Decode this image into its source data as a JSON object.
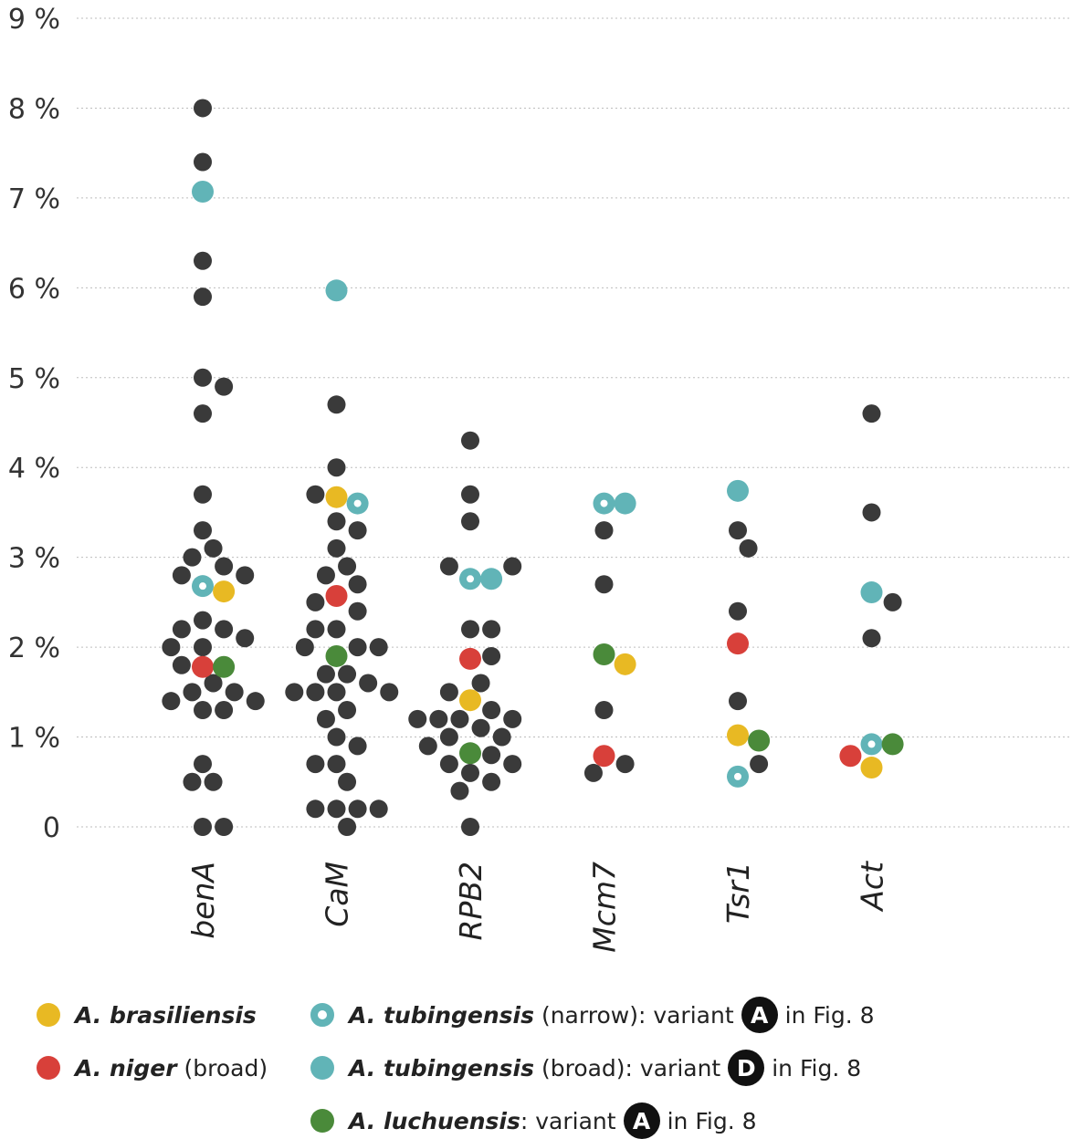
{
  "chart_data": {
    "type": "scatter",
    "title": "",
    "xlabel": "",
    "ylabel": "",
    "ylim": [
      0,
      9
    ],
    "y_tick_labels": [
      "0",
      "1 %",
      "2 %",
      "3 %",
      "4 %",
      "5 %",
      "6 %",
      "7 %",
      "8 %",
      "9 %"
    ],
    "categories": [
      "benA",
      "CaM",
      "RPB2",
      "Mcm7",
      "Tsr1",
      "Act"
    ],
    "grid": "horizontal dotted",
    "colors": {
      "other": "#3a3a3a",
      "A. brasiliensis": "#e8b923",
      "A. niger": "#d8403a",
      "A. tubingensis (narrow)": "#61b4b7",
      "A. tubingensis (broad)": "#61b4b7",
      "A. luchuensis": "#4a8a3a"
    },
    "points": [
      {
        "cat": "benA",
        "y": 8.0,
        "s": "other"
      },
      {
        "cat": "benA",
        "y": 7.4,
        "s": "other"
      },
      {
        "cat": "benA",
        "y": 7.07,
        "s": "A. tubingensis (broad)"
      },
      {
        "cat": "benA",
        "y": 6.3,
        "s": "other"
      },
      {
        "cat": "benA",
        "y": 5.9,
        "s": "other"
      },
      {
        "cat": "benA",
        "y": 5.0,
        "s": "other"
      },
      {
        "cat": "benA",
        "y": 4.9,
        "s": "other"
      },
      {
        "cat": "benA",
        "y": 4.6,
        "s": "other"
      },
      {
        "cat": "benA",
        "y": 3.7,
        "s": "other"
      },
      {
        "cat": "benA",
        "y": 3.3,
        "s": "other"
      },
      {
        "cat": "benA",
        "y": 3.1,
        "s": "other"
      },
      {
        "cat": "benA",
        "y": 3.0,
        "s": "other"
      },
      {
        "cat": "benA",
        "y": 2.9,
        "s": "other"
      },
      {
        "cat": "benA",
        "y": 2.8,
        "s": "other"
      },
      {
        "cat": "benA",
        "y": 2.8,
        "s": "other"
      },
      {
        "cat": "benA",
        "y": 2.68,
        "s": "A. tubingensis (narrow)"
      },
      {
        "cat": "benA",
        "y": 2.62,
        "s": "A. brasiliensis"
      },
      {
        "cat": "benA",
        "y": 2.3,
        "s": "other"
      },
      {
        "cat": "benA",
        "y": 2.2,
        "s": "other"
      },
      {
        "cat": "benA",
        "y": 2.2,
        "s": "other"
      },
      {
        "cat": "benA",
        "y": 2.1,
        "s": "other"
      },
      {
        "cat": "benA",
        "y": 2.0,
        "s": "other"
      },
      {
        "cat": "benA",
        "y": 2.0,
        "s": "other"
      },
      {
        "cat": "benA",
        "y": 1.8,
        "s": "other"
      },
      {
        "cat": "benA",
        "y": 1.78,
        "s": "A. niger"
      },
      {
        "cat": "benA",
        "y": 1.78,
        "s": "A. luchuensis"
      },
      {
        "cat": "benA",
        "y": 1.6,
        "s": "other"
      },
      {
        "cat": "benA",
        "y": 1.5,
        "s": "other"
      },
      {
        "cat": "benA",
        "y": 1.5,
        "s": "other"
      },
      {
        "cat": "benA",
        "y": 1.4,
        "s": "other"
      },
      {
        "cat": "benA",
        "y": 1.4,
        "s": "other"
      },
      {
        "cat": "benA",
        "y": 1.3,
        "s": "other"
      },
      {
        "cat": "benA",
        "y": 1.3,
        "s": "other"
      },
      {
        "cat": "benA",
        "y": 0.7,
        "s": "other"
      },
      {
        "cat": "benA",
        "y": 0.5,
        "s": "other"
      },
      {
        "cat": "benA",
        "y": 0.5,
        "s": "other"
      },
      {
        "cat": "benA",
        "y": 0.0,
        "s": "other"
      },
      {
        "cat": "benA",
        "y": 0.0,
        "s": "other"
      },
      {
        "cat": "CaM",
        "y": 5.97,
        "s": "A. tubingensis (broad)"
      },
      {
        "cat": "CaM",
        "y": 4.7,
        "s": "other"
      },
      {
        "cat": "CaM",
        "y": 4.0,
        "s": "other"
      },
      {
        "cat": "CaM",
        "y": 3.7,
        "s": "other"
      },
      {
        "cat": "CaM",
        "y": 3.67,
        "s": "A. brasiliensis"
      },
      {
        "cat": "CaM",
        "y": 3.6,
        "s": "A. tubingensis (narrow)"
      },
      {
        "cat": "CaM",
        "y": 3.4,
        "s": "other"
      },
      {
        "cat": "CaM",
        "y": 3.3,
        "s": "other"
      },
      {
        "cat": "CaM",
        "y": 3.1,
        "s": "other"
      },
      {
        "cat": "CaM",
        "y": 2.9,
        "s": "other"
      },
      {
        "cat": "CaM",
        "y": 2.8,
        "s": "other"
      },
      {
        "cat": "CaM",
        "y": 2.7,
        "s": "other"
      },
      {
        "cat": "CaM",
        "y": 2.57,
        "s": "A. niger"
      },
      {
        "cat": "CaM",
        "y": 2.5,
        "s": "other"
      },
      {
        "cat": "CaM",
        "y": 2.4,
        "s": "other"
      },
      {
        "cat": "CaM",
        "y": 2.2,
        "s": "other"
      },
      {
        "cat": "CaM",
        "y": 2.2,
        "s": "other"
      },
      {
        "cat": "CaM",
        "y": 2.0,
        "s": "other"
      },
      {
        "cat": "CaM",
        "y": 2.0,
        "s": "other"
      },
      {
        "cat": "CaM",
        "y": 2.0,
        "s": "other"
      },
      {
        "cat": "CaM",
        "y": 1.9,
        "s": "A. luchuensis"
      },
      {
        "cat": "CaM",
        "y": 1.7,
        "s": "other"
      },
      {
        "cat": "CaM",
        "y": 1.7,
        "s": "other"
      },
      {
        "cat": "CaM",
        "y": 1.6,
        "s": "other"
      },
      {
        "cat": "CaM",
        "y": 1.5,
        "s": "other"
      },
      {
        "cat": "CaM",
        "y": 1.5,
        "s": "other"
      },
      {
        "cat": "CaM",
        "y": 1.5,
        "s": "other"
      },
      {
        "cat": "CaM",
        "y": 1.5,
        "s": "other"
      },
      {
        "cat": "CaM",
        "y": 1.3,
        "s": "other"
      },
      {
        "cat": "CaM",
        "y": 1.2,
        "s": "other"
      },
      {
        "cat": "CaM",
        "y": 1.0,
        "s": "other"
      },
      {
        "cat": "CaM",
        "y": 0.9,
        "s": "other"
      },
      {
        "cat": "CaM",
        "y": 0.7,
        "s": "other"
      },
      {
        "cat": "CaM",
        "y": 0.7,
        "s": "other"
      },
      {
        "cat": "CaM",
        "y": 0.5,
        "s": "other"
      },
      {
        "cat": "CaM",
        "y": 0.2,
        "s": "other"
      },
      {
        "cat": "CaM",
        "y": 0.2,
        "s": "other"
      },
      {
        "cat": "CaM",
        "y": 0.2,
        "s": "other"
      },
      {
        "cat": "CaM",
        "y": 0.2,
        "s": "other"
      },
      {
        "cat": "CaM",
        "y": 0.0,
        "s": "other"
      },
      {
        "cat": "RPB2",
        "y": 4.3,
        "s": "other"
      },
      {
        "cat": "RPB2",
        "y": 3.7,
        "s": "other"
      },
      {
        "cat": "RPB2",
        "y": 3.4,
        "s": "other"
      },
      {
        "cat": "RPB2",
        "y": 2.9,
        "s": "other"
      },
      {
        "cat": "RPB2",
        "y": 2.9,
        "s": "other"
      },
      {
        "cat": "RPB2",
        "y": 2.76,
        "s": "A. tubingensis (narrow)"
      },
      {
        "cat": "RPB2",
        "y": 2.76,
        "s": "A. tubingensis (broad)"
      },
      {
        "cat": "RPB2",
        "y": 2.2,
        "s": "other"
      },
      {
        "cat": "RPB2",
        "y": 2.2,
        "s": "other"
      },
      {
        "cat": "RPB2",
        "y": 1.9,
        "s": "other"
      },
      {
        "cat": "RPB2",
        "y": 1.87,
        "s": "A. niger"
      },
      {
        "cat": "RPB2",
        "y": 1.6,
        "s": "other"
      },
      {
        "cat": "RPB2",
        "y": 1.5,
        "s": "other"
      },
      {
        "cat": "RPB2",
        "y": 1.41,
        "s": "A. brasiliensis"
      },
      {
        "cat": "RPB2",
        "y": 1.3,
        "s": "other"
      },
      {
        "cat": "RPB2",
        "y": 1.2,
        "s": "other"
      },
      {
        "cat": "RPB2",
        "y": 1.2,
        "s": "other"
      },
      {
        "cat": "RPB2",
        "y": 1.2,
        "s": "other"
      },
      {
        "cat": "RPB2",
        "y": 1.2,
        "s": "other"
      },
      {
        "cat": "RPB2",
        "y": 1.1,
        "s": "other"
      },
      {
        "cat": "RPB2",
        "y": 1.0,
        "s": "other"
      },
      {
        "cat": "RPB2",
        "y": 1.0,
        "s": "other"
      },
      {
        "cat": "RPB2",
        "y": 0.9,
        "s": "other"
      },
      {
        "cat": "RPB2",
        "y": 0.82,
        "s": "A. luchuensis"
      },
      {
        "cat": "RPB2",
        "y": 0.8,
        "s": "other"
      },
      {
        "cat": "RPB2",
        "y": 0.7,
        "s": "other"
      },
      {
        "cat": "RPB2",
        "y": 0.7,
        "s": "other"
      },
      {
        "cat": "RPB2",
        "y": 0.6,
        "s": "other"
      },
      {
        "cat": "RPB2",
        "y": 0.5,
        "s": "other"
      },
      {
        "cat": "RPB2",
        "y": 0.4,
        "s": "other"
      },
      {
        "cat": "RPB2",
        "y": 0.0,
        "s": "other"
      },
      {
        "cat": "Mcm7",
        "y": 3.6,
        "s": "A. tubingensis (narrow)"
      },
      {
        "cat": "Mcm7",
        "y": 3.6,
        "s": "A. tubingensis (broad)"
      },
      {
        "cat": "Mcm7",
        "y": 3.3,
        "s": "other"
      },
      {
        "cat": "Mcm7",
        "y": 2.7,
        "s": "other"
      },
      {
        "cat": "Mcm7",
        "y": 1.92,
        "s": "A. luchuensis"
      },
      {
        "cat": "Mcm7",
        "y": 1.81,
        "s": "A. brasiliensis"
      },
      {
        "cat": "Mcm7",
        "y": 1.3,
        "s": "other"
      },
      {
        "cat": "Mcm7",
        "y": 0.79,
        "s": "A. niger"
      },
      {
        "cat": "Mcm7",
        "y": 0.7,
        "s": "other"
      },
      {
        "cat": "Mcm7",
        "y": 0.6,
        "s": "other"
      },
      {
        "cat": "Tsr1",
        "y": 3.74,
        "s": "A. tubingensis (broad)"
      },
      {
        "cat": "Tsr1",
        "y": 3.3,
        "s": "other"
      },
      {
        "cat": "Tsr1",
        "y": 3.1,
        "s": "other"
      },
      {
        "cat": "Tsr1",
        "y": 2.4,
        "s": "other"
      },
      {
        "cat": "Tsr1",
        "y": 2.04,
        "s": "A. niger"
      },
      {
        "cat": "Tsr1",
        "y": 1.4,
        "s": "other"
      },
      {
        "cat": "Tsr1",
        "y": 1.02,
        "s": "A. brasiliensis"
      },
      {
        "cat": "Tsr1",
        "y": 0.96,
        "s": "A. luchuensis"
      },
      {
        "cat": "Tsr1",
        "y": 0.7,
        "s": "other"
      },
      {
        "cat": "Tsr1",
        "y": 0.56,
        "s": "A. tubingensis (narrow)"
      },
      {
        "cat": "Act",
        "y": 4.6,
        "s": "other"
      },
      {
        "cat": "Act",
        "y": 3.5,
        "s": "other"
      },
      {
        "cat": "Act",
        "y": 2.61,
        "s": "A. tubingensis (broad)"
      },
      {
        "cat": "Act",
        "y": 2.5,
        "s": "other"
      },
      {
        "cat": "Act",
        "y": 2.1,
        "s": "other"
      },
      {
        "cat": "Act",
        "y": 0.92,
        "s": "A. tubingensis (narrow)"
      },
      {
        "cat": "Act",
        "y": 0.92,
        "s": "A. luchuensis"
      },
      {
        "cat": "Act",
        "y": 0.79,
        "s": "A. niger"
      },
      {
        "cat": "Act",
        "y": 0.66,
        "s": "A. brasiliensis"
      }
    ]
  },
  "legend": {
    "brasiliensis": {
      "name": "A. brasiliensis",
      "rest": ""
    },
    "niger": {
      "name": "A. niger",
      "rest": " (broad)"
    },
    "tub_narrow": {
      "name": "A. tubingensis",
      "rest": " (narrow): variant",
      "badge": "A",
      "tail": "in Fig. 8"
    },
    "tub_broad": {
      "name": "A. tubingensis",
      "rest": " (broad): variant",
      "badge": "D",
      "tail": "in Fig. 8"
    },
    "luchuensis": {
      "name": "A. luchuensis",
      "rest": ": variant",
      "badge": "A",
      "tail": "in Fig. 8"
    }
  }
}
